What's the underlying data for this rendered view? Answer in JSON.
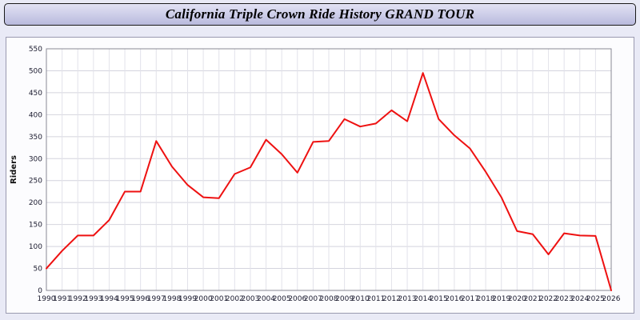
{
  "header": {
    "title": "California Triple Crown Ride History GRAND TOUR"
  },
  "chart_data": {
    "type": "line",
    "title": "California Triple Crown Ride History GRAND TOUR",
    "xlabel": "",
    "ylabel": "Riders",
    "ylim": [
      0,
      550
    ],
    "y_tick_step": 50,
    "grid": true,
    "legend_position": "none",
    "line_color": "#ee1111",
    "x": [
      1990,
      1991,
      1992,
      1993,
      1994,
      1995,
      1996,
      1997,
      1998,
      1999,
      2000,
      2001,
      2002,
      2003,
      2004,
      2005,
      2006,
      2007,
      2008,
      2009,
      2010,
      2011,
      2012,
      2013,
      2014,
      2015,
      2016,
      2017,
      2018,
      2019,
      2020,
      2021,
      2022,
      2023,
      2024,
      2025,
      2026
    ],
    "series": [
      {
        "name": "Riders",
        "values": [
          50,
          90,
          125,
          125,
          160,
          225,
          225,
          340,
          282,
          240,
          212,
          210,
          265,
          280,
          343,
          310,
          268,
          338,
          340,
          390,
          373,
          380,
          410,
          385,
          495,
          390,
          353,
          323,
          270,
          212,
          135,
          128,
          82,
          130,
          125,
          124,
          0
        ]
      }
    ]
  }
}
